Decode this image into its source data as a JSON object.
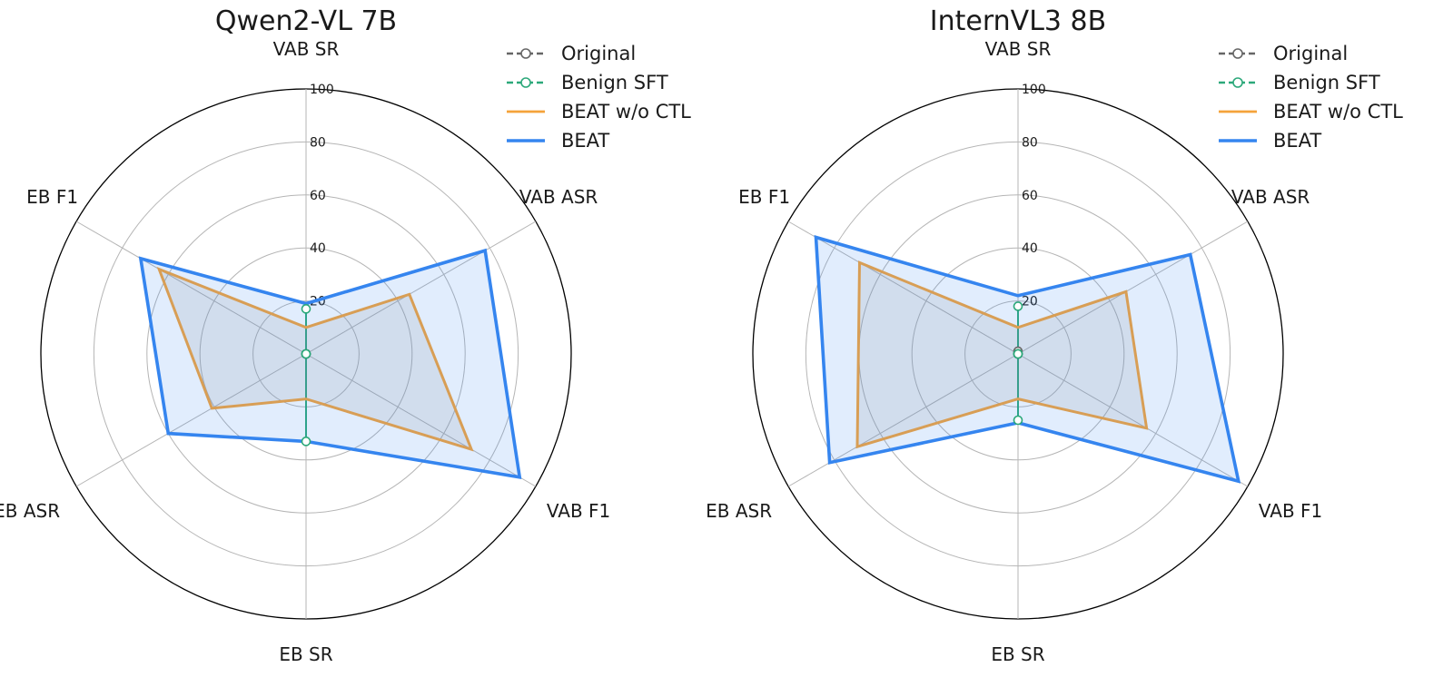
{
  "chart_data": [
    {
      "type": "radar",
      "title": "Qwen2-VL 7B",
      "axes": [
        "VAB SR",
        "VAB ASR",
        "VAB F1",
        "EB SR",
        "EB ASR",
        "EB F1"
      ],
      "rlim": [
        0,
        100
      ],
      "rticks": [
        "20",
        "40",
        "60",
        "80",
        "100"
      ],
      "grid": true,
      "legend_position": "top-right",
      "series": [
        {
          "name": "Original",
          "values": [
            0,
            0,
            0,
            0,
            0,
            0
          ],
          "color": "#666666",
          "style": "dashed-circle-markers"
        },
        {
          "name": "Benign SFT",
          "values": [
            17,
            0,
            0,
            33,
            0,
            0
          ],
          "color": "#2ca87a",
          "style": "dashed-circle-markers"
        },
        {
          "name": "BEAT w/o CTL",
          "values": [
            10,
            45,
            72,
            17,
            41,
            64
          ],
          "color": "#f5a33a",
          "style": "solid"
        },
        {
          "name": "BEAT",
          "values": [
            19,
            78,
            93,
            33,
            60,
            72
          ],
          "color": "#3585ef",
          "style": "solid-filled"
        }
      ]
    },
    {
      "type": "radar",
      "title": "InternVL3 8B",
      "axes": [
        "VAB SR",
        "VAB ASR",
        "VAB F1",
        "EB SR",
        "EB ASR",
        "EB F1"
      ],
      "rlim": [
        0,
        100
      ],
      "rticks": [
        "20",
        "40",
        "60",
        "80",
        "100"
      ],
      "grid": true,
      "legend_position": "top-right",
      "series": [
        {
          "name": "Original",
          "values": [
            1,
            0,
            0,
            0,
            0,
            0
          ],
          "color": "#666666",
          "style": "dashed-circle-markers"
        },
        {
          "name": "Benign SFT",
          "values": [
            18,
            0,
            0,
            25,
            0,
            0
          ],
          "color": "#2ca87a",
          "style": "dashed-circle-markers"
        },
        {
          "name": "BEAT w/o CTL",
          "values": [
            10,
            47,
            56,
            17,
            70,
            69
          ],
          "color": "#f5a33a",
          "style": "solid"
        },
        {
          "name": "BEAT",
          "values": [
            22,
            75,
            96,
            26,
            82,
            88
          ],
          "color": "#3585ef",
          "style": "solid-filled"
        }
      ]
    }
  ]
}
